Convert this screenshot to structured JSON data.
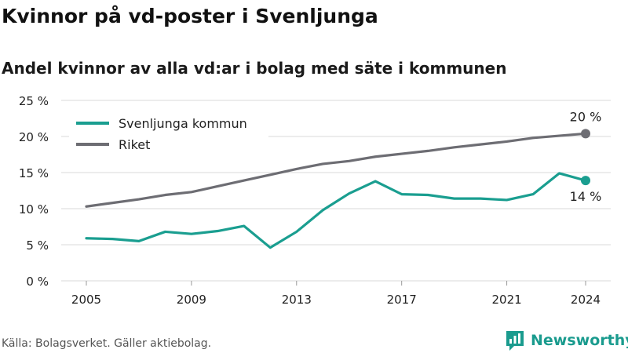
{
  "header": {
    "title": "Kvinnor på vd-poster i Svenljunga",
    "subtitle": "Andel kvinnor av alla vd:ar i bolag med säte i kommunen"
  },
  "footer": {
    "source": "Källa: Bolagsverket. Gäller aktiebolag.",
    "brand": "Newsworthy"
  },
  "colors": {
    "svenljunga": "#1a9e90",
    "riket": "#6d6d73",
    "grid": "#d9d9d9",
    "brand": "#1a9b8e"
  },
  "chart_data": {
    "type": "line",
    "title": "Kvinnor på vd-poster i Svenljunga",
    "subtitle": "Andel kvinnor av alla vd:ar i bolag med säte i kommunen",
    "x": [
      2005,
      2006,
      2007,
      2008,
      2009,
      2010,
      2011,
      2012,
      2013,
      2014,
      2015,
      2016,
      2017,
      2018,
      2019,
      2020,
      2021,
      2022,
      2023,
      2024
    ],
    "x_ticks": [
      "2005",
      "2009",
      "2013",
      "2017",
      "2021",
      "2024"
    ],
    "x_tick_values": [
      2005,
      2009,
      2013,
      2017,
      2021,
      2024
    ],
    "xlim": [
      2005,
      2024
    ],
    "y_ticks": [
      "0 %",
      "5 %",
      "10 %",
      "15 %",
      "20 %",
      "25 %"
    ],
    "y_tick_values": [
      0,
      5,
      10,
      15,
      20,
      25
    ],
    "ylim": [
      0,
      25
    ],
    "grid": true,
    "legend_position": "top-left",
    "series": [
      {
        "name": "Svenljunga kommun",
        "color": "#1a9e90",
        "values": [
          5.9,
          5.8,
          5.5,
          6.8,
          6.5,
          6.9,
          7.6,
          4.6,
          6.8,
          9.8,
          12.1,
          13.8,
          12.0,
          11.9,
          11.4,
          11.4,
          11.2,
          12.0,
          14.9,
          13.9
        ],
        "end_label": "14 %"
      },
      {
        "name": "Riket",
        "color": "#6d6d73",
        "values": [
          10.3,
          10.8,
          11.3,
          11.9,
          12.3,
          13.1,
          13.9,
          14.7,
          15.5,
          16.2,
          16.6,
          17.2,
          17.6,
          18.0,
          18.5,
          18.9,
          19.3,
          19.8,
          20.1,
          20.4
        ],
        "end_label": "20 %"
      }
    ]
  }
}
